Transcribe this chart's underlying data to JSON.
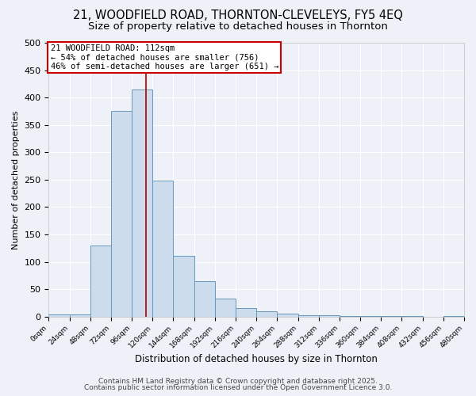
{
  "title": "21, WOODFIELD ROAD, THORNTON-CLEVELEYS, FY5 4EQ",
  "subtitle": "Size of property relative to detached houses in Thornton",
  "xlabel": "Distribution of detached houses by size in Thornton",
  "ylabel": "Number of detached properties",
  "bar_edges": [
    0,
    24,
    48,
    72,
    96,
    120,
    144,
    168,
    192,
    216,
    240,
    264,
    288,
    312,
    336,
    360,
    384,
    408,
    432,
    456,
    480
  ],
  "bar_heights": [
    4,
    4,
    130,
    375,
    415,
    248,
    111,
    65,
    33,
    15,
    9,
    5,
    3,
    2,
    1,
    1,
    1,
    1,
    0,
    1
  ],
  "bar_color": "#ccdcec",
  "bar_edgecolor": "#6699bb",
  "property_size": 112,
  "vline_color": "#aa0000",
  "annotation_line1": "21 WOODFIELD ROAD: 112sqm",
  "annotation_line2": "← 54% of detached houses are smaller (756)",
  "annotation_line3": "46% of semi-detached houses are larger (651) →",
  "annotation_box_color": "#ffffff",
  "annotation_box_edgecolor": "#cc0000",
  "ylim": [
    0,
    500
  ],
  "yticks": [
    0,
    50,
    100,
    150,
    200,
    250,
    300,
    350,
    400,
    450,
    500
  ],
  "xlim": [
    0,
    480
  ],
  "background_color": "#eef2f8",
  "grid_color": "#ffffff",
  "footer_line1": "Contains HM Land Registry data © Crown copyright and database right 2025.",
  "footer_line2": "Contains public sector information licensed under the Open Government Licence 3.0.",
  "title_fontsize": 10.5,
  "subtitle_fontsize": 9.5,
  "footer_fontsize": 6.5
}
